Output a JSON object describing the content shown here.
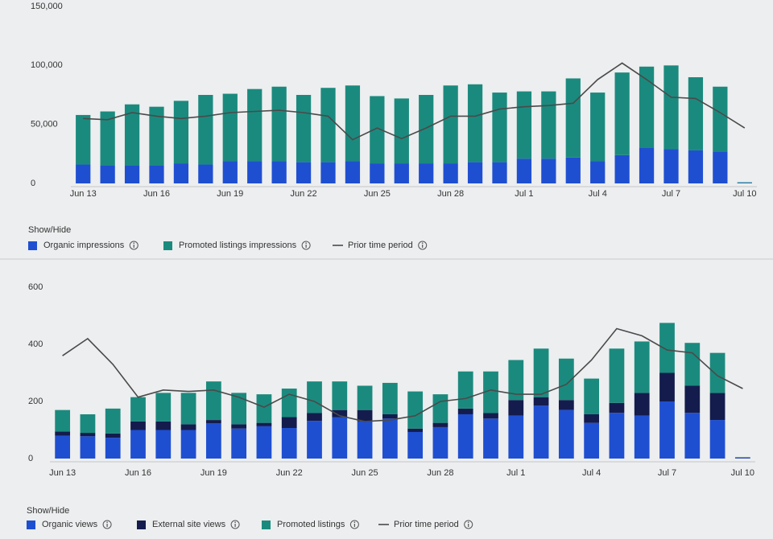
{
  "chart_data": [
    {
      "type": "bar",
      "stacked": true,
      "grid": false,
      "categories": [
        "Jun 13",
        null,
        null,
        "Jun 16",
        null,
        null,
        "Jun 19",
        null,
        null,
        "Jun 22",
        null,
        null,
        "Jun 25",
        null,
        null,
        "Jun 28",
        null,
        null,
        "Jul 1",
        null,
        null,
        "Jul 4",
        null,
        null,
        "Jul 7",
        null,
        null,
        "Jul 10"
      ],
      "ylim": [
        0,
        150000
      ],
      "yticks": [
        0,
        {
          "value": 50000,
          "label": "50,000"
        },
        {
          "value": 100000,
          "label": "100,000"
        },
        {
          "value": 150000,
          "label": "150,000"
        }
      ],
      "legend_title": "Show/Hide",
      "series": [
        {
          "name": "Organic impressions",
          "type": "bar",
          "color": "#1f4fd1",
          "values": [
            16000,
            15000,
            15000,
            15000,
            17000,
            16000,
            19000,
            19000,
            19000,
            18000,
            18000,
            19000,
            17000,
            17000,
            17000,
            17000,
            18000,
            18000,
            21000,
            21000,
            22000,
            19000,
            24000,
            30000,
            29000,
            28000,
            27000,
            500
          ]
        },
        {
          "name": "Promoted listings impressions",
          "type": "bar",
          "color": "#1b8a7e",
          "values": [
            42000,
            46000,
            52000,
            50000,
            53000,
            59000,
            57000,
            61000,
            63000,
            57000,
            63000,
            64000,
            57000,
            55000,
            58000,
            66000,
            66000,
            59000,
            57000,
            57000,
            67000,
            58000,
            70000,
            69000,
            71000,
            62000,
            55000,
            500
          ]
        },
        {
          "name": "Prior time period",
          "type": "line",
          "color": "#4a4a4a",
          "values": [
            55000,
            54000,
            60000,
            57000,
            55000,
            57000,
            60000,
            61000,
            62000,
            60000,
            57000,
            37000,
            47000,
            38000,
            47000,
            57000,
            57000,
            63000,
            65000,
            66000,
            68000,
            88000,
            102000,
            88000,
            73000,
            72000,
            60000,
            47000
          ]
        }
      ]
    },
    {
      "type": "bar",
      "stacked": true,
      "grid": false,
      "categories": [
        "Jun 13",
        null,
        null,
        "Jun 16",
        null,
        null,
        "Jun 19",
        null,
        null,
        "Jun 22",
        null,
        null,
        "Jun 25",
        null,
        null,
        "Jun 28",
        null,
        null,
        "Jul 1",
        null,
        null,
        "Jul 4",
        null,
        null,
        "Jul 7",
        null,
        null,
        "Jul 10"
      ],
      "ylim": [
        0,
        600
      ],
      "yticks": [
        0,
        200,
        400,
        600
      ],
      "legend_title": "Show/Hide",
      "series": [
        {
          "name": "Organic views",
          "type": "bar",
          "color": "#1f4fd1",
          "values": [
            80,
            78,
            73,
            100,
            100,
            100,
            123,
            105,
            113,
            107,
            132,
            145,
            130,
            140,
            93,
            110,
            155,
            140,
            150,
            185,
            170,
            125,
            160,
            150,
            200,
            160,
            135,
            2
          ]
        },
        {
          "name": "External site views",
          "type": "bar",
          "color": "#141c4d",
          "values": [
            15,
            12,
            15,
            30,
            30,
            20,
            12,
            15,
            12,
            38,
            28,
            25,
            40,
            15,
            12,
            15,
            20,
            20,
            55,
            30,
            35,
            30,
            35,
            80,
            100,
            95,
            95,
            1
          ]
        },
        {
          "name": "Promoted listings",
          "type": "bar",
          "color": "#1b8a7e",
          "values": [
            75,
            65,
            87,
            85,
            100,
            110,
            135,
            110,
            100,
            100,
            110,
            100,
            85,
            110,
            130,
            100,
            130,
            145,
            140,
            170,
            145,
            125,
            190,
            180,
            175,
            150,
            140,
            2
          ]
        },
        {
          "name": "Prior time period",
          "type": "line",
          "color": "#4a4a4a",
          "values": [
            360,
            420,
            330,
            215,
            240,
            235,
            240,
            215,
            180,
            225,
            200,
            150,
            130,
            135,
            150,
            200,
            210,
            240,
            225,
            225,
            260,
            345,
            455,
            430,
            380,
            370,
            290,
            245
          ]
        }
      ]
    }
  ]
}
